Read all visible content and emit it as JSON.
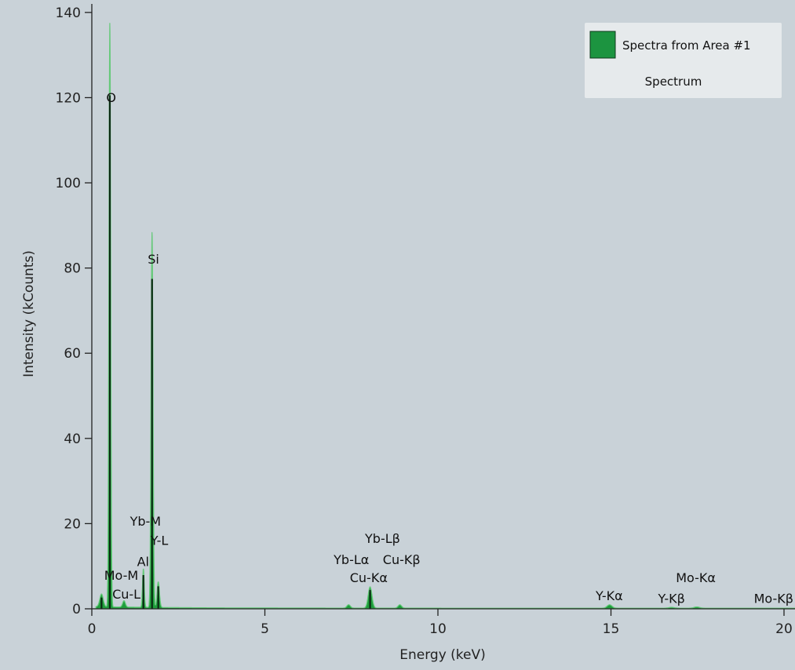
{
  "colors": {
    "plot_bg": "#c9d2d8",
    "spectrum_fill": "#1f9e3c",
    "spectrum_highlight": "#66c97a",
    "spectrum_edge": "#0a2a12",
    "legend_bg": "#e6eaec",
    "legend_swatch": "#1c9440"
  },
  "chart_data": {
    "type": "area",
    "xlabel": "Energy (keV)",
    "ylabel": "Intensity (kCounts)",
    "xlim": [
      0,
      20
    ],
    "ylim": [
      0,
      142
    ],
    "x_ticks": [
      0,
      5,
      10,
      15,
      20
    ],
    "x_tick_labels": [
      "0",
      "5",
      "10",
      "15",
      "20"
    ],
    "y_ticks": [
      0,
      20,
      40,
      60,
      80,
      100,
      120,
      140
    ],
    "y_tick_labels": [
      "0",
      "20",
      "40",
      "60",
      "80",
      "100",
      "120",
      "140"
    ],
    "grid": false,
    "legend": {
      "position": "top-right",
      "entries": [
        "Spectra from Area #1"
      ],
      "subtitle": "Spectrum"
    },
    "series": [
      {
        "name": "Spectra from Area #1",
        "peaks": [
          {
            "x": 0.28,
            "y": 3.0,
            "w": 0.05
          },
          {
            "x": 0.52,
            "y": 137.0,
            "w": 0.025
          },
          {
            "x": 0.93,
            "y": 1.5,
            "w": 0.04
          },
          {
            "x": 1.49,
            "y": 9.0,
            "w": 0.025
          },
          {
            "x": 1.74,
            "y": 88.0,
            "w": 0.028
          },
          {
            "x": 1.92,
            "y": 6.0,
            "w": 0.035
          },
          {
            "x": 7.42,
            "y": 0.8,
            "w": 0.05
          },
          {
            "x": 8.04,
            "y": 5.0,
            "w": 0.055
          },
          {
            "x": 8.9,
            "y": 0.8,
            "w": 0.05
          },
          {
            "x": 14.96,
            "y": 0.8,
            "w": 0.07
          },
          {
            "x": 16.75,
            "y": 0.2,
            "w": 0.08
          },
          {
            "x": 17.48,
            "y": 0.3,
            "w": 0.08
          }
        ]
      }
    ],
    "annotations": [
      {
        "text": "O",
        "x": 0.56,
        "y": 119
      },
      {
        "text": "Si",
        "x": 1.78,
        "y": 81
      },
      {
        "text": "Yb-M",
        "x": 1.55,
        "y": 19.5
      },
      {
        "text": "Y-L",
        "x": 1.95,
        "y": 15
      },
      {
        "text": "Al",
        "x": 1.48,
        "y": 10
      },
      {
        "text": "Mo-M",
        "x": 0.85,
        "y": 6.8
      },
      {
        "text": "Cu-L",
        "x": 1.0,
        "y": 2.4
      },
      {
        "text": "Yb-Lβ",
        "x": 8.4,
        "y": 15.5
      },
      {
        "text": "Yb-Lα",
        "x": 7.5,
        "y": 10.5
      },
      {
        "text": "Cu-Kβ",
        "x": 8.95,
        "y": 10.5
      },
      {
        "text": "Cu-Kα",
        "x": 8.0,
        "y": 6.3
      },
      {
        "text": "Y-Kα",
        "x": 14.95,
        "y": 2.0
      },
      {
        "text": "Mo-Kα",
        "x": 17.45,
        "y": 6.3
      },
      {
        "text": "Y-Kβ",
        "x": 16.75,
        "y": 1.4
      },
      {
        "text": "Mo-Kβ",
        "x": 19.7,
        "y": 1.4
      }
    ]
  }
}
